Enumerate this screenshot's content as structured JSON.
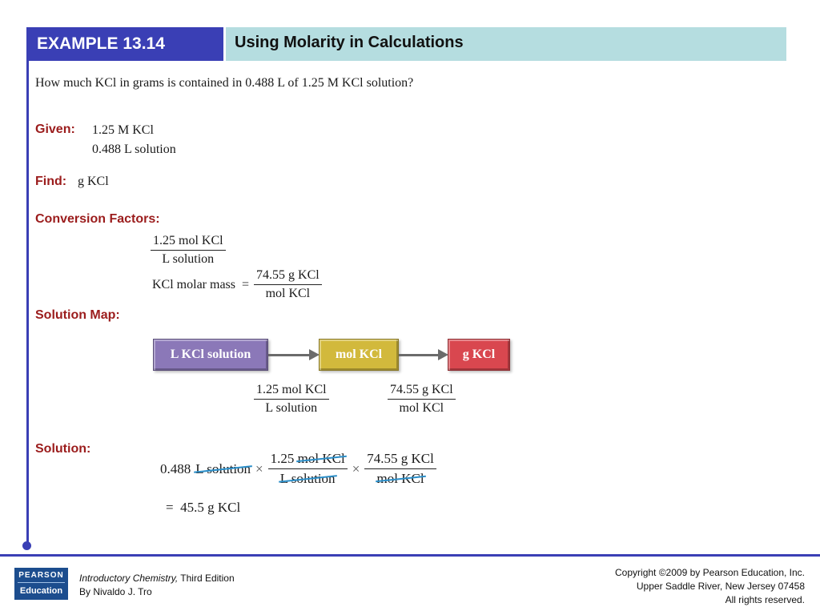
{
  "header": {
    "example_label": "EXAMPLE 13.14",
    "title": "Using Molarity in Calculations"
  },
  "question": "How much KCl in grams is contained in 0.488 L of 1.25 M KCl solution?",
  "given": {
    "label": "Given:",
    "line1": "1.25 M KCl",
    "line2": "0.488 L solution"
  },
  "find": {
    "label": "Find:",
    "value": "g KCl"
  },
  "conversion_factors": {
    "label": "Conversion Factors:",
    "factor1": {
      "num": "1.25 mol KCl",
      "den": "L solution"
    },
    "molar_mass_label": "KCl molar mass  =",
    "factor2": {
      "num": "74.55 g KCl",
      "den": "mol KCl"
    }
  },
  "solution_map": {
    "label": "Solution Map:",
    "boxes": [
      "L KCl solution",
      "mol KCl",
      "g KCl"
    ],
    "box_colors": [
      "#8b78b8",
      "#d2b93c",
      "#d9474f"
    ],
    "step1": {
      "num": "1.25 mol KCl",
      "den": "L solution"
    },
    "step2": {
      "num": "74.55 g KCl",
      "den": "mol KCl"
    }
  },
  "solution": {
    "label": "Solution:",
    "start_value": "0.488",
    "start_unit": "L solution",
    "times": "×",
    "f1": {
      "num_value": "1.25",
      "num_unit": "mol KCl",
      "den": "L solution"
    },
    "f2": {
      "num": "74.55 g KCl",
      "den": "mol KCl"
    },
    "result": "=  45.5 g KCl"
  },
  "footer": {
    "logo_top": "PEARSON",
    "logo_bottom": "Education",
    "book_title": "Introductory Chemistry,",
    "edition": " Third Edition",
    "author": "By Nivaldo J. Tro",
    "copyright1": "Copyright ©2009 by Pearson Education, Inc.",
    "copyright2": "Upper Saddle River, New Jersey 07458",
    "copyright3": "All rights reserved."
  }
}
